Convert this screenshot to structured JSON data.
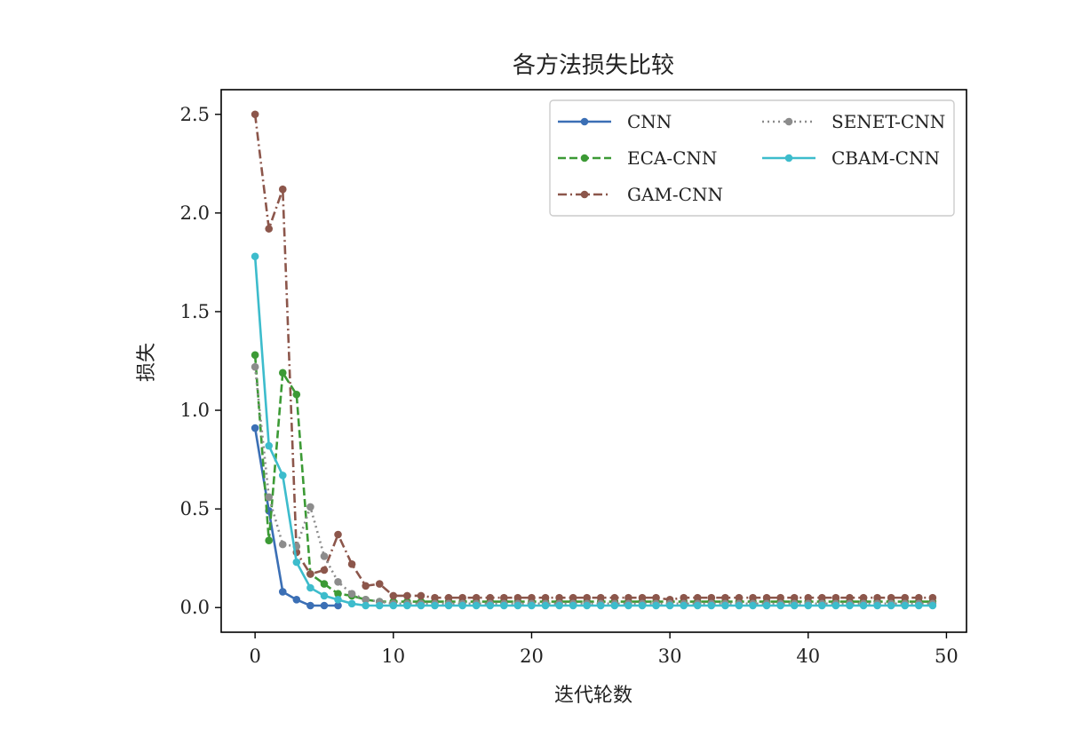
{
  "chart_data": {
    "type": "line",
    "title": "各方法损失比较",
    "xlabel": "迭代轮数",
    "ylabel": "损失",
    "xlim": [
      -2.45,
      51.45
    ],
    "ylim": [
      -0.125,
      2.625
    ],
    "xticks": [
      "0",
      "10",
      "20",
      "30",
      "40",
      "50"
    ],
    "xtick_values": [
      0,
      10,
      20,
      30,
      40,
      50
    ],
    "yticks": [
      "0.0",
      "0.5",
      "1.0",
      "1.5",
      "2.0",
      "2.5"
    ],
    "ytick_values": [
      0.0,
      0.5,
      1.0,
      1.5,
      2.0,
      2.5
    ],
    "grid": false,
    "legend_position": "top-right",
    "legend_columns": 2,
    "series": [
      {
        "name": "CNN",
        "color": "#3b6fb5",
        "dash": "solid",
        "x": [
          0,
          1,
          2,
          3,
          4,
          5,
          6
        ],
        "y": [
          0.91,
          0.49,
          0.08,
          0.04,
          0.01,
          0.01,
          0.01
        ]
      },
      {
        "name": "ECA-CNN",
        "color": "#3c9a35",
        "dash": "dashed",
        "x": [
          0,
          1,
          2,
          3,
          4,
          5,
          6,
          7,
          8,
          9,
          10,
          11,
          12,
          13,
          14,
          15,
          16,
          17,
          18,
          19,
          20,
          21,
          22,
          23,
          24,
          25,
          26,
          27,
          28,
          29,
          30,
          31,
          32,
          33,
          34,
          35,
          36,
          37,
          38,
          39,
          40,
          41,
          42,
          43,
          44,
          45,
          46,
          47,
          48,
          49
        ],
        "y": [
          1.28,
          0.34,
          1.19,
          1.08,
          0.17,
          0.12,
          0.07,
          0.06,
          0.04,
          0.03,
          0.03,
          0.03,
          0.03,
          0.03,
          0.03,
          0.03,
          0.03,
          0.03,
          0.03,
          0.03,
          0.03,
          0.03,
          0.03,
          0.03,
          0.03,
          0.03,
          0.03,
          0.03,
          0.03,
          0.03,
          0.03,
          0.03,
          0.03,
          0.03,
          0.03,
          0.03,
          0.03,
          0.03,
          0.03,
          0.03,
          0.03,
          0.03,
          0.03,
          0.03,
          0.03,
          0.03,
          0.03,
          0.03,
          0.03,
          0.03
        ]
      },
      {
        "name": "GAM-CNN",
        "color": "#8c564b",
        "dash": "dashdot",
        "x": [
          0,
          1,
          2,
          3,
          4,
          5,
          6,
          7,
          8,
          9,
          10,
          11,
          12,
          13,
          14,
          15,
          16,
          17,
          18,
          19,
          20,
          21,
          22,
          23,
          24,
          25,
          26,
          27,
          28,
          29,
          30,
          31,
          32,
          33,
          34,
          35,
          36,
          37,
          38,
          39,
          40,
          41,
          42,
          43,
          44,
          45,
          46,
          47,
          48,
          49
        ],
        "y": [
          2.5,
          1.92,
          2.12,
          0.28,
          0.17,
          0.19,
          0.37,
          0.22,
          0.11,
          0.12,
          0.06,
          0.06,
          0.06,
          0.05,
          0.05,
          0.05,
          0.05,
          0.05,
          0.05,
          0.05,
          0.05,
          0.05,
          0.05,
          0.05,
          0.05,
          0.05,
          0.05,
          0.05,
          0.05,
          0.05,
          0.04,
          0.05,
          0.05,
          0.05,
          0.05,
          0.05,
          0.05,
          0.05,
          0.05,
          0.05,
          0.05,
          0.05,
          0.05,
          0.05,
          0.05,
          0.05,
          0.05,
          0.05,
          0.05,
          0.05
        ]
      },
      {
        "name": "SENET-CNN",
        "color": "#8c8c8c",
        "dash": "dotted",
        "x": [
          0,
          1,
          2,
          3,
          4,
          5,
          6,
          7,
          8,
          9,
          10,
          11,
          12,
          13,
          14,
          15,
          16,
          17,
          18,
          19,
          20,
          21,
          22,
          23,
          24,
          25,
          26,
          27,
          28,
          29,
          30,
          31,
          32,
          33,
          34,
          35,
          36,
          37,
          38,
          39,
          40,
          41,
          42,
          43,
          44,
          45,
          46,
          47,
          48,
          49
        ],
        "y": [
          1.22,
          0.56,
          0.32,
          0.31,
          0.51,
          0.26,
          0.13,
          0.07,
          0.04,
          0.03,
          0.02,
          0.02,
          0.02,
          0.02,
          0.02,
          0.02,
          0.02,
          0.02,
          0.02,
          0.02,
          0.02,
          0.02,
          0.02,
          0.02,
          0.02,
          0.02,
          0.02,
          0.02,
          0.02,
          0.02,
          0.02,
          0.02,
          0.02,
          0.02,
          0.02,
          0.02,
          0.02,
          0.02,
          0.02,
          0.02,
          0.02,
          0.02,
          0.02,
          0.02,
          0.02,
          0.02,
          0.02,
          0.02,
          0.02,
          0.02
        ]
      },
      {
        "name": "CBAM-CNN",
        "color": "#3dbccc",
        "dash": "solid",
        "x": [
          0,
          1,
          2,
          3,
          4,
          5,
          6,
          7,
          8,
          9,
          10,
          11,
          12,
          13,
          14,
          15,
          16,
          17,
          18,
          19,
          20,
          21,
          22,
          23,
          24,
          25,
          26,
          27,
          28,
          29,
          30,
          31,
          32,
          33,
          34,
          35,
          36,
          37,
          38,
          39,
          40,
          41,
          42,
          43,
          44,
          45,
          46,
          47,
          48,
          49
        ],
        "y": [
          1.78,
          0.82,
          0.67,
          0.23,
          0.1,
          0.06,
          0.04,
          0.02,
          0.01,
          0.01,
          0.01,
          0.01,
          0.01,
          0.01,
          0.01,
          0.01,
          0.01,
          0.01,
          0.01,
          0.01,
          0.01,
          0.01,
          0.01,
          0.01,
          0.01,
          0.01,
          0.01,
          0.01,
          0.01,
          0.01,
          0.01,
          0.01,
          0.01,
          0.01,
          0.01,
          0.01,
          0.01,
          0.01,
          0.01,
          0.01,
          0.01,
          0.01,
          0.01,
          0.01,
          0.01,
          0.01,
          0.01,
          0.01,
          0.01,
          0.01
        ]
      }
    ]
  }
}
